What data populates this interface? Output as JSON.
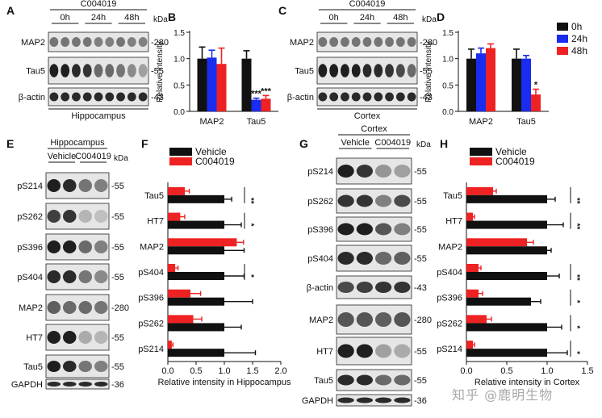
{
  "panels": {
    "A": {
      "letter": "A",
      "compound": "C004019",
      "times": [
        "0h",
        "24h",
        "48h"
      ],
      "unit": "kDa",
      "rows": [
        {
          "label": "MAP2",
          "kda": "-280",
          "lanes": [
            0.55,
            0.55,
            0.55,
            0.55,
            0.5,
            0.5,
            0.55,
            0.5,
            0.5
          ]
        },
        {
          "label": "Tau5",
          "kda": "-55",
          "lanes": [
            0.95,
            0.95,
            0.9,
            0.85,
            0.6,
            0.6,
            0.55,
            0.45,
            0.35
          ]
        },
        {
          "label": "β-actin",
          "kda": "-43",
          "lanes": [
            0.9,
            0.9,
            0.9,
            0.9,
            0.9,
            0.9,
            0.9,
            0.9,
            0.9
          ]
        }
      ],
      "region": "Hippocampus"
    },
    "C": {
      "letter": "C",
      "compound": "C004019",
      "times": [
        "0h",
        "24h",
        "48h"
      ],
      "unit": "kDa",
      "rows": [
        {
          "label": "MAP2",
          "kda": "-280",
          "lanes": [
            0.55,
            0.55,
            0.55,
            0.55,
            0.55,
            0.55,
            0.55,
            0.55,
            0.55
          ]
        },
        {
          "label": "Tau5",
          "kda": "-55",
          "lanes": [
            0.95,
            0.95,
            0.95,
            0.95,
            0.9,
            0.9,
            0.85,
            0.75,
            0.6
          ]
        },
        {
          "label": "β-actin",
          "kda": "-43",
          "lanes": [
            0.9,
            0.9,
            0.9,
            0.9,
            0.9,
            0.9,
            0.9,
            0.9,
            0.9
          ]
        }
      ],
      "region": "Cortex"
    },
    "E": {
      "letter": "E",
      "region": "Hippocampus",
      "groups": [
        "Vehicle",
        "C004019"
      ],
      "unit": "kDa",
      "rows": [
        {
          "label": "pS214",
          "kda": "-55",
          "lanes": [
            0.95,
            0.9,
            0.55,
            0.5
          ]
        },
        {
          "label": "pS262",
          "kda": "-55",
          "lanes": [
            0.8,
            0.85,
            0.25,
            0.2
          ]
        },
        {
          "label": "pS396",
          "kda": "-55",
          "lanes": [
            0.95,
            0.95,
            0.6,
            0.5
          ]
        },
        {
          "label": "pS404",
          "kda": "-55",
          "lanes": [
            0.9,
            0.9,
            0.55,
            0.45
          ]
        },
        {
          "label": "MAP2",
          "kda": "-280",
          "lanes": [
            0.65,
            0.6,
            0.6,
            0.55
          ]
        },
        {
          "label": "HT7",
          "kda": "-55",
          "lanes": [
            0.95,
            0.95,
            0.3,
            0.25
          ]
        },
        {
          "label": "Tau5",
          "kda": "-55",
          "lanes": [
            0.95,
            0.9,
            0.55,
            0.5
          ]
        },
        {
          "label": "GAPDH",
          "kda": "-36",
          "lanes": [
            0.9,
            0.9,
            0.9,
            0.9
          ]
        }
      ]
    },
    "G": {
      "letter": "G",
      "region": "Cortex",
      "groups": [
        "Vehicle",
        "C004019"
      ],
      "unit": "kDa",
      "rows": [
        {
          "label": "pS214",
          "kda": "-55",
          "lanes": [
            0.95,
            0.85,
            0.4,
            0.35
          ]
        },
        {
          "label": "pS262",
          "kda": "-55",
          "lanes": [
            0.85,
            0.85,
            0.5,
            0.75
          ]
        },
        {
          "label": "pS396",
          "kda": "-55",
          "lanes": [
            0.95,
            0.95,
            0.7,
            0.5
          ]
        },
        {
          "label": "pS404",
          "kda": "-55",
          "lanes": [
            0.9,
            0.9,
            0.6,
            0.65
          ]
        },
        {
          "label": "β-actin",
          "kda": "-43",
          "lanes": [
            0.75,
            0.8,
            0.85,
            0.85
          ]
        },
        {
          "label": "MAP2",
          "kda": "-280",
          "lanes": [
            0.7,
            0.7,
            0.65,
            0.7
          ]
        },
        {
          "label": "HT7",
          "kda": "-55",
          "lanes": [
            0.95,
            0.95,
            0.35,
            0.3
          ]
        },
        {
          "label": "Tau5",
          "kda": "-55",
          "lanes": [
            0.9,
            0.9,
            0.6,
            0.6
          ]
        },
        {
          "label": "GAPDH",
          "kda": "-36",
          "lanes": [
            0.9,
            0.9,
            0.9,
            0.9
          ]
        }
      ]
    }
  },
  "watermark": "知乎 @鹿明生物",
  "colors": {
    "black": "#111111",
    "blue": "#1a2cf0",
    "red": "#ee2222"
  },
  "chart_data": [
    {
      "id": "B",
      "letter": "B",
      "type": "bar",
      "categories": [
        "MAP2",
        "Tau5"
      ],
      "series": [
        {
          "name": "0h",
          "color": "#111111",
          "values": [
            1.0,
            1.0
          ],
          "errors": [
            0.22,
            0.15
          ]
        },
        {
          "name": "24h",
          "color": "#1a2cf0",
          "values": [
            1.02,
            0.22
          ],
          "errors": [
            0.14,
            0.03
          ]
        },
        {
          "name": "48h",
          "color": "#ee2222",
          "values": [
            0.9,
            0.24
          ],
          "errors": [
            0.3,
            0.06
          ]
        }
      ],
      "significance": [
        {
          "category": 1,
          "series": 1,
          "label": "***"
        },
        {
          "category": 1,
          "series": 2,
          "label": "***"
        }
      ],
      "ylabel": "Relative intensity",
      "ylim": [
        0,
        1.5
      ],
      "yticks": [
        0.0,
        0.5,
        1.0,
        1.5
      ],
      "ytick_labels": [
        "0.0",
        "0.5",
        "1.0",
        "1.5"
      ]
    },
    {
      "id": "D",
      "letter": "D",
      "type": "bar",
      "categories": [
        "MAP2",
        "Tau5"
      ],
      "series": [
        {
          "name": "0h",
          "color": "#111111",
          "values": [
            1.0,
            1.0
          ],
          "errors": [
            0.18,
            0.18
          ]
        },
        {
          "name": "24h",
          "color": "#1a2cf0",
          "values": [
            1.1,
            1.0
          ],
          "errors": [
            0.1,
            0.06
          ]
        },
        {
          "name": "48h",
          "color": "#ee2222",
          "values": [
            1.2,
            0.32
          ],
          "errors": [
            0.08,
            0.1
          ]
        }
      ],
      "significance": [
        {
          "category": 1,
          "series": 2,
          "label": "*"
        }
      ],
      "legend": [
        "0h",
        "24h",
        "48h"
      ],
      "ylabel": "Relative intensity",
      "ylim": [
        0,
        1.5
      ],
      "yticks": [
        0.0,
        0.5,
        1.0,
        1.5
      ],
      "ytick_labels": [
        "0.0",
        "0.5",
        "1.0",
        "1.5"
      ]
    },
    {
      "id": "F",
      "letter": "F",
      "type": "bar",
      "orientation": "horizontal",
      "categories": [
        "Tau5",
        "HT7",
        "MAP2",
        "pS404",
        "pS396",
        "pS262",
        "pS214"
      ],
      "series": [
        {
          "name": "Vehicle",
          "color": "#111111",
          "values": [
            1.0,
            1.0,
            1.0,
            1.0,
            1.0,
            1.0,
            1.0
          ],
          "errors": [
            0.13,
            0.3,
            0.35,
            0.35,
            0.5,
            0.3,
            0.55
          ]
        },
        {
          "name": "C004019",
          "color": "#ee2222",
          "values": [
            0.3,
            0.22,
            1.22,
            0.13,
            0.4,
            0.45,
            0.07
          ],
          "errors": [
            0.08,
            0.08,
            0.12,
            0.05,
            0.18,
            0.15,
            0.02
          ]
        }
      ],
      "significance": [
        "**",
        "*",
        "",
        "*",
        "",
        "",
        ""
      ],
      "xlabel": "Relative intensity in Hippocampus",
      "xlim": [
        0,
        2.0
      ],
      "xticks": [
        0.0,
        0.5,
        1.0,
        1.5,
        2.0
      ],
      "xtick_labels": [
        "0.0",
        "0.5",
        "1.0",
        "1.5",
        "2.0"
      ],
      "legend": [
        "Vehicle",
        "C004019"
      ]
    },
    {
      "id": "H",
      "letter": "H",
      "type": "bar",
      "orientation": "horizontal",
      "categories": [
        "Tau5",
        "HT7",
        "MAP2",
        "pS404",
        "pS396",
        "pS262",
        "pS214"
      ],
      "series": [
        {
          "name": "Vehicle",
          "color": "#111111",
          "values": [
            1.0,
            1.0,
            1.0,
            1.0,
            0.8,
            1.0,
            1.0
          ],
          "errors": [
            0.1,
            0.2,
            0.05,
            0.15,
            0.12,
            0.18,
            0.25
          ]
        },
        {
          "name": "C004019",
          "color": "#ee2222",
          "values": [
            0.33,
            0.08,
            0.75,
            0.15,
            0.15,
            0.25,
            0.08
          ],
          "errors": [
            0.04,
            0.02,
            0.08,
            0.03,
            0.05,
            0.06,
            0.02
          ]
        }
      ],
      "significance": [
        "**",
        "**",
        "",
        "**",
        "*",
        "*",
        "*"
      ],
      "xlabel": "Relative intensity in Cortex",
      "xlim": [
        0,
        1.5
      ],
      "xticks": [
        0.0,
        0.5,
        1.0,
        1.5
      ],
      "xtick_labels": [
        "0.0",
        "0.5",
        "1.0",
        "1.5"
      ],
      "legend": [
        "Vehicle",
        "C004019"
      ]
    }
  ]
}
